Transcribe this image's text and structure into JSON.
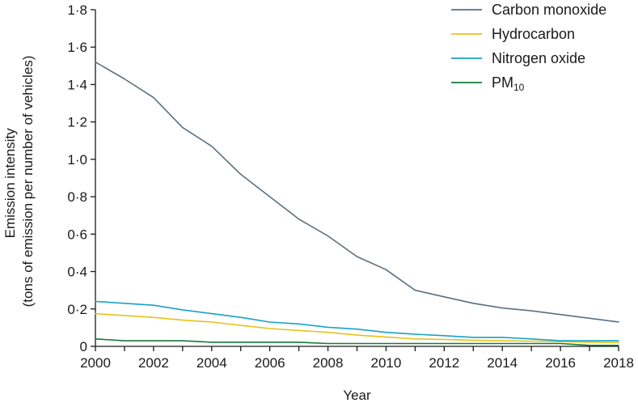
{
  "chart_data": {
    "type": "line",
    "title": "",
    "xlabel": "Year",
    "ylabel": [
      "Emission intensity",
      "(tons of emission per number of vehicles)"
    ],
    "xlim": [
      2000,
      2018
    ],
    "ylim": [
      0,
      1.8
    ],
    "x_ticks": [
      2000,
      2002,
      2004,
      2006,
      2008,
      2010,
      2012,
      2014,
      2016,
      2018
    ],
    "y_ticks": [
      "0",
      "0·2",
      "0·4",
      "0·6",
      "0·8",
      "1·0",
      "1·2",
      "1·4",
      "1·6",
      "1·8"
    ],
    "x": [
      2000,
      2001,
      2002,
      2003,
      2004,
      2005,
      2006,
      2007,
      2008,
      2009,
      2010,
      2011,
      2012,
      2013,
      2014,
      2015,
      2016,
      2017,
      2018
    ],
    "grid": false,
    "legend_position": "top-right",
    "series": [
      {
        "name": "Carbon monoxide",
        "label_main": "Carbon monoxide",
        "label_sub": "",
        "color": "#5a707e",
        "values": [
          1.52,
          1.43,
          1.33,
          1.17,
          1.07,
          0.92,
          0.8,
          0.68,
          0.59,
          0.48,
          0.41,
          0.3,
          0.265,
          0.23,
          0.205,
          0.19,
          0.17,
          0.15,
          0.13
        ]
      },
      {
        "name": "Hydrocarbon",
        "label_main": "Hydrocarbon",
        "label_sub": "",
        "color": "#e6c21c",
        "values": [
          0.175,
          0.165,
          0.155,
          0.14,
          0.13,
          0.112,
          0.095,
          0.085,
          0.075,
          0.06,
          0.05,
          0.04,
          0.037,
          0.032,
          0.03,
          0.028,
          0.025,
          0.022,
          0.02
        ]
      },
      {
        "name": "Nitrogen oxide",
        "label_main": "Nitrogen oxide",
        "label_sub": "",
        "color": "#17a3c4",
        "values": [
          0.24,
          0.23,
          0.22,
          0.195,
          0.175,
          0.155,
          0.13,
          0.12,
          0.102,
          0.092,
          0.075,
          0.065,
          0.057,
          0.048,
          0.048,
          0.04,
          0.03,
          0.03,
          0.03
        ]
      },
      {
        "name": "PM10",
        "label_main": "PM",
        "label_sub": "10",
        "color": "#137a3c",
        "values": [
          0.04,
          0.03,
          0.03,
          0.03,
          0.022,
          0.022,
          0.022,
          0.022,
          0.015,
          0.015,
          0.015,
          0.015,
          0.015,
          0.015,
          0.015,
          0.015,
          0.015,
          0.005,
          0.005
        ]
      }
    ]
  }
}
